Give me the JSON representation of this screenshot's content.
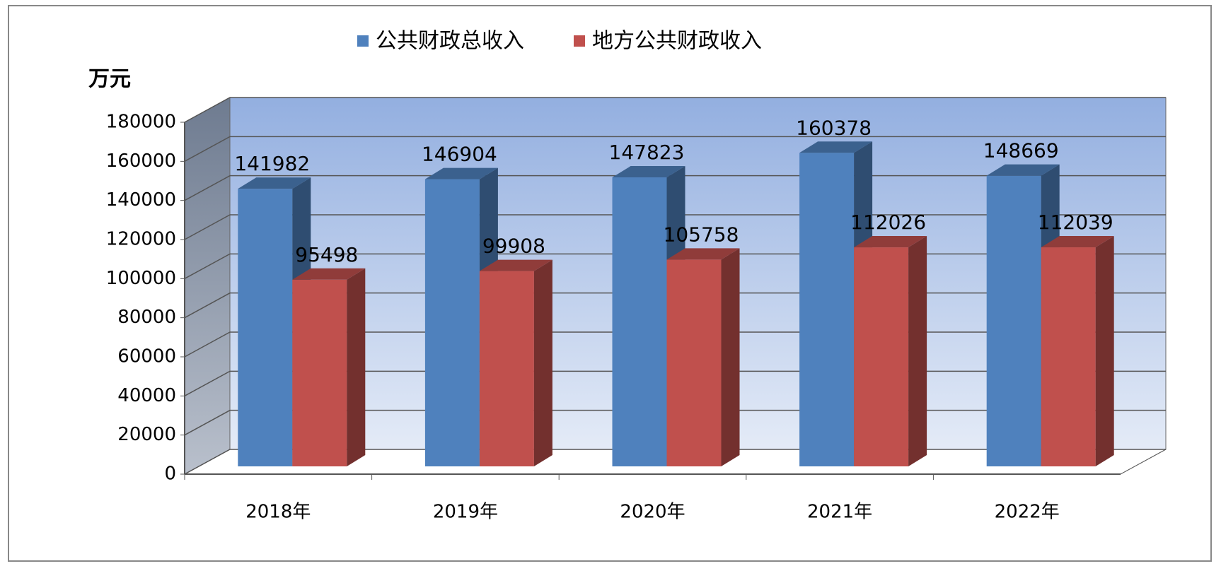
{
  "chart_data": {
    "type": "bar3d",
    "y_label": "万元",
    "categories": [
      "2018年",
      "2019年",
      "2020年",
      "2021年",
      "2022年"
    ],
    "series": [
      {
        "name": "公共财政总收入",
        "color": "#4f81bd",
        "values": [
          141982,
          146904,
          147823,
          160378,
          148669
        ]
      },
      {
        "name": "地方公共财政收入",
        "color": "#c0504d",
        "values": [
          95498,
          99908,
          105758,
          112026,
          112039
        ]
      }
    ],
    "ylim": [
      0,
      180000
    ],
    "yticks": [
      0,
      20000,
      40000,
      60000,
      80000,
      100000,
      120000,
      140000,
      160000,
      180000
    ],
    "grid": true,
    "legend": "top"
  }
}
